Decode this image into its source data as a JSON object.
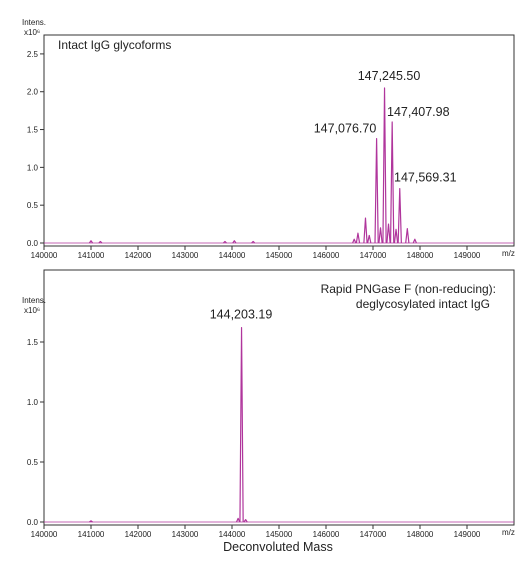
{
  "colors": {
    "trace": "#b0359c",
    "axis": "#333333",
    "text": "#222222"
  },
  "chart_data": [
    {
      "type": "line",
      "annotation": "Intact IgG glycoforms",
      "ylabel_line1": "Intens.",
      "ylabel_line2": "x10⁶",
      "x_unit": "m/z",
      "xlim": [
        140000,
        150000
      ],
      "ylim": [
        0,
        2.75
      ],
      "xticks": [
        140000,
        141000,
        142000,
        143000,
        144000,
        145000,
        146000,
        147000,
        148000,
        149000
      ],
      "yticks": [
        0.0,
        0.5,
        1.0,
        1.5,
        2.0,
        2.5
      ],
      "ytick_labels": [
        "0.0",
        "0.5",
        "1.0",
        "1.5",
        "2.0",
        "2.5"
      ],
      "peaks": [
        {
          "x": 146600,
          "y": 0.05
        },
        {
          "x": 146680,
          "y": 0.13
        },
        {
          "x": 146840,
          "y": 0.33
        },
        {
          "x": 146920,
          "y": 0.1
        },
        {
          "x": 147076.7,
          "y": 1.38,
          "label": "147,076.70"
        },
        {
          "x": 147160,
          "y": 0.2
        },
        {
          "x": 147245.5,
          "y": 2.05,
          "label": "147,245.50"
        },
        {
          "x": 147330,
          "y": 0.25
        },
        {
          "x": 147407.98,
          "y": 1.6,
          "label": "147,407.98"
        },
        {
          "x": 147490,
          "y": 0.18
        },
        {
          "x": 147569.31,
          "y": 0.72,
          "label": "147,569.31"
        },
        {
          "x": 147730,
          "y": 0.19
        },
        {
          "x": 147890,
          "y": 0.05
        },
        {
          "x": 141000,
          "y": 0.03
        },
        {
          "x": 141200,
          "y": 0.02
        },
        {
          "x": 143850,
          "y": 0.02
        },
        {
          "x": 144050,
          "y": 0.03
        },
        {
          "x": 144450,
          "y": 0.02
        }
      ]
    },
    {
      "type": "line",
      "annotation_line1": "Rapid PNGase F (non-reducing):",
      "annotation_line2": "deglycosylated intact IgG",
      "ylabel_line1": "Intens.",
      "ylabel_line2": "x10⁶",
      "x_unit": "m/z",
      "xlabel": "Deconvoluted Mass",
      "xlim": [
        140000,
        150000
      ],
      "ylim": [
        0,
        2.1
      ],
      "xticks": [
        140000,
        141000,
        142000,
        143000,
        144000,
        145000,
        146000,
        147000,
        148000,
        149000
      ],
      "yticks": [
        0.0,
        0.5,
        1.0,
        1.5
      ],
      "ytick_labels": [
        "0.0",
        "0.5",
        "1.0",
        "1.5"
      ],
      "peaks": [
        {
          "x": 144203.19,
          "y": 1.62,
          "label": "144,203.19"
        },
        {
          "x": 144130,
          "y": 0.03
        },
        {
          "x": 144290,
          "y": 0.02
        },
        {
          "x": 141000,
          "y": 0.01
        }
      ]
    }
  ]
}
